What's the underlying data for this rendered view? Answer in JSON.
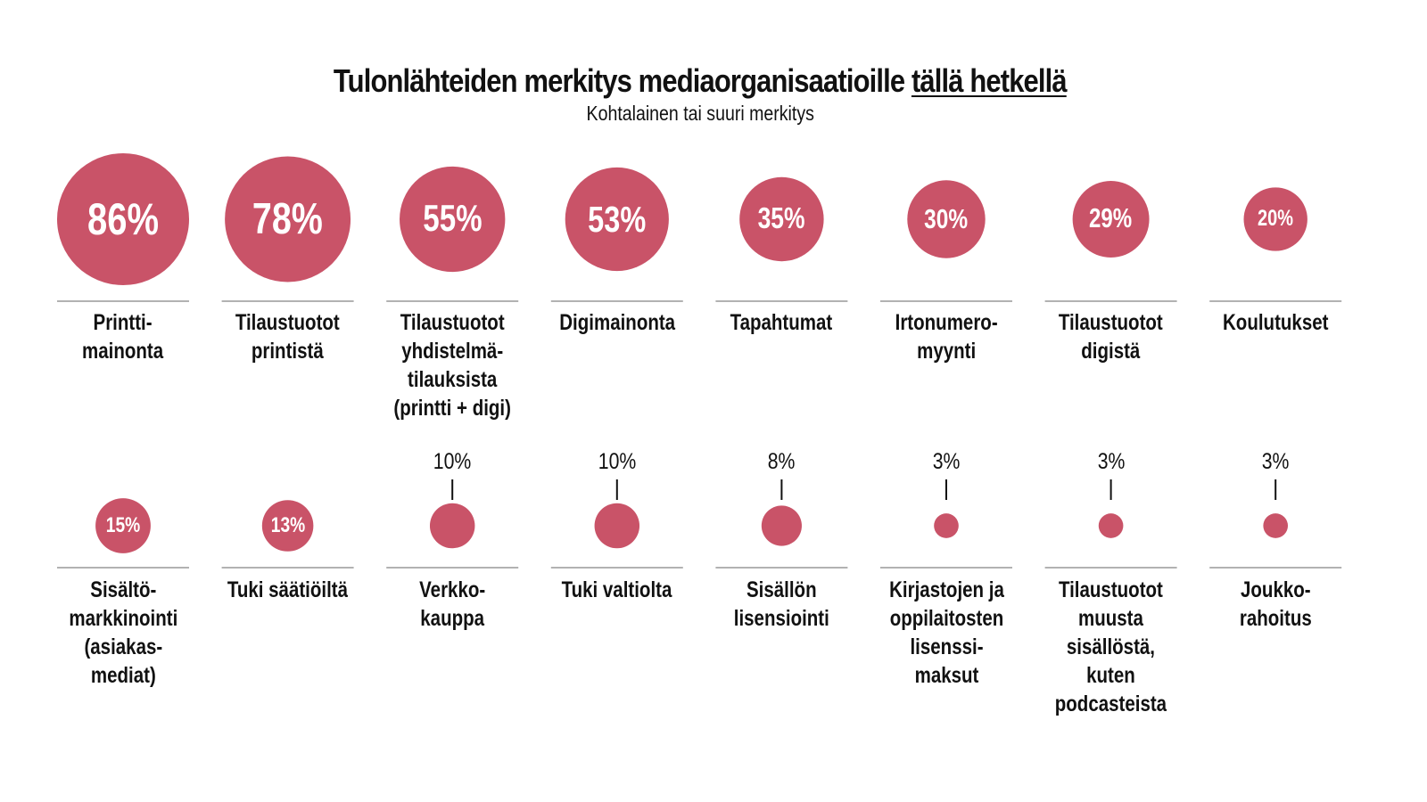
{
  "title": {
    "main": "Tulonlähteiden merkitys mediaorganisaatioille ",
    "emphasis": "tällä hetkellä"
  },
  "subtitle": "Kohtalainen tai suuri merkitys",
  "chart_data": {
    "type": "bubble",
    "title": "Tulonlähteiden merkitys mediaorganisaatioille tällä hetkellä",
    "subtitle": "Kohtalainen tai suuri merkitys",
    "unit": "%",
    "color": "#c95368",
    "rows": [
      {
        "items": [
          {
            "label": "Printti-\nmainonta",
            "value": 86
          },
          {
            "label": "Tilaustuotot\nprintistä",
            "value": 78
          },
          {
            "label": "Tilaustuotot\nyhdistelmä-\ntilauksista\n(printti + digi)",
            "value": 55
          },
          {
            "label": "Digimainonta",
            "value": 53
          },
          {
            "label": "Tapahtumat",
            "value": 35
          },
          {
            "label": "Irtonumero-\nmyynti",
            "value": 30
          },
          {
            "label": "Tilaustuotot\ndigistä",
            "value": 29
          },
          {
            "label": "Koulutukset",
            "value": 20
          }
        ]
      },
      {
        "items": [
          {
            "label": "Sisältö-\nmarkkinointi\n(asiakas-\nmediat)",
            "value": 15
          },
          {
            "label": "Tuki säätiöiltä",
            "value": 13
          },
          {
            "label": "Verkko-\nkauppa",
            "value": 10
          },
          {
            "label": "Tuki valtiolta",
            "value": 10
          },
          {
            "label": "Sisällön\nlisensiointi",
            "value": 8
          },
          {
            "label": "Kirjastojen ja\noppilaitosten\nlisenssi-\nmaksut",
            "value": 3
          },
          {
            "label": "Tilaustuotot\nmuusta\nsisällöstä,\nkuten\npodcasteista",
            "value": 3
          },
          {
            "label": "Joukko-\nrahoitus",
            "value": 3
          }
        ]
      }
    ]
  }
}
